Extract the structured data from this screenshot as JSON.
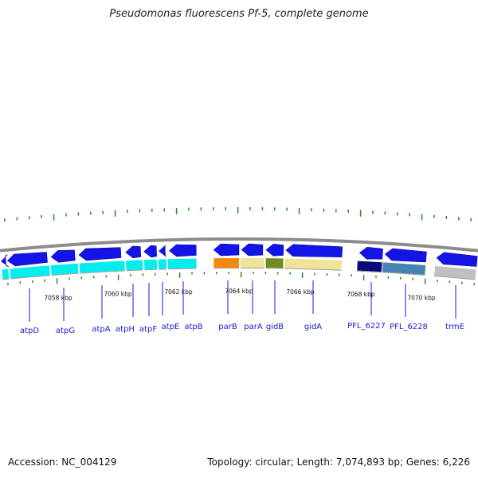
{
  "title": "Pseudomonas fluorescens Pf-5, complete genome",
  "footer": {
    "accession": "Accession: NC_004129",
    "summary": "Topology: circular; Length: 7,074,893 bp; Genes: 6,226"
  },
  "colors": {
    "backbone": "#8c8c8c",
    "tick": "#2a8a2a",
    "forward_gene": "#1414e6",
    "label": "#1a1ad0"
  },
  "kbp_labels": [
    "7058 kbp",
    "7060 kbp",
    "7062 kbp",
    "7064 kbp",
    "7066 kbp",
    "7068 kbp",
    "7070 kbp"
  ],
  "genes": [
    {
      "name": "atpD",
      "strand": "-",
      "feature_color": "#00eeee"
    },
    {
      "name": "atpG",
      "strand": "-",
      "feature_color": "#00eeee"
    },
    {
      "name": "atpA",
      "strand": "-",
      "feature_color": "#00eeee"
    },
    {
      "name": "atpH",
      "strand": "-",
      "feature_color": "#00eeee"
    },
    {
      "name": "atpF",
      "strand": "-",
      "feature_color": "#00eeee"
    },
    {
      "name": "atpE",
      "strand": "-",
      "feature_color": "#00eeee"
    },
    {
      "name": "atpB",
      "strand": "-",
      "feature_color": "#00eeee"
    },
    {
      "name": "parB",
      "strand": "-",
      "feature_color": "#f2880e"
    },
    {
      "name": "parA",
      "strand": "-",
      "feature_color": "#efe39a"
    },
    {
      "name": "gidB",
      "strand": "-",
      "feature_color": "#6e8c22"
    },
    {
      "name": "gidA",
      "strand": "-",
      "feature_color": "#efe39a"
    },
    {
      "name": "PFL_6227",
      "strand": "-",
      "feature_color": "#0a0a78"
    },
    {
      "name": "PFL_6228",
      "strand": "-",
      "feature_color": "#4682b4"
    },
    {
      "name": "trmE",
      "strand": "-",
      "feature_color": "#c0c0c0"
    }
  ]
}
